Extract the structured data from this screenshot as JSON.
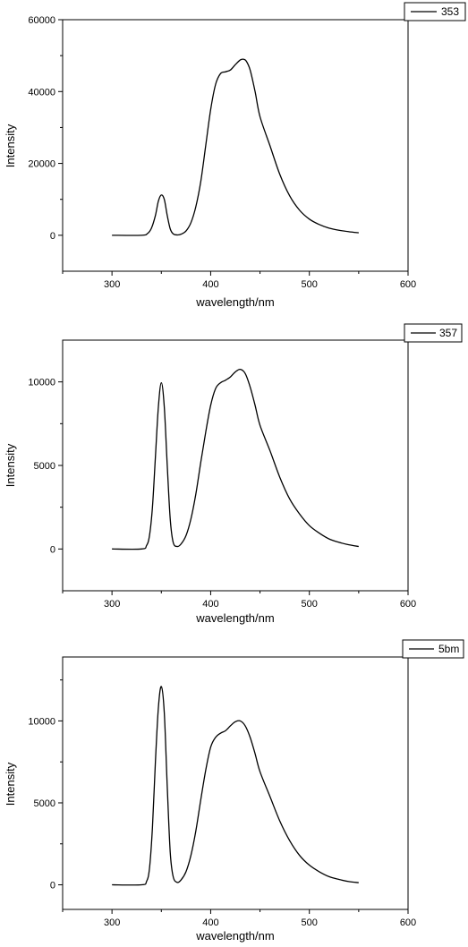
{
  "chart_data": [
    {
      "type": "line",
      "xlabel": "wavelength/nm",
      "ylabel": "Intensity",
      "xlim": [
        250,
        600
      ],
      "ylim": [
        -10000,
        60000
      ],
      "xticks": [
        300,
        400,
        500,
        600
      ],
      "xtick_labels": [
        "300",
        "400",
        "500",
        "600"
      ],
      "yticks": [
        0,
        20000,
        40000,
        60000
      ],
      "ytick_labels": [
        "0",
        "20000",
        "40000",
        "60000"
      ],
      "legend_position": "top-right",
      "series": [
        {
          "name": "353",
          "x": [
            300,
            330,
            336,
            340,
            344,
            347,
            350,
            353,
            356,
            359,
            362,
            366,
            370,
            375,
            380,
            385,
            390,
            395,
            400,
            405,
            410,
            415,
            420,
            425,
            430,
            433,
            436,
            440,
            445,
            450,
            460,
            470,
            480,
            490,
            500,
            510,
            520,
            530,
            540,
            550
          ],
          "y": [
            0,
            0,
            500,
            2000,
            5500,
            9500,
            11200,
            10000,
            5500,
            1800,
            400,
            100,
            300,
            1200,
            3500,
            8000,
            15000,
            25000,
            35000,
            42000,
            45000,
            45500,
            46000,
            47500,
            48800,
            49000,
            48500,
            46000,
            40000,
            33000,
            25000,
            17000,
            11000,
            7000,
            4500,
            3000,
            2000,
            1400,
            1000,
            700
          ]
        }
      ]
    },
    {
      "type": "line",
      "xlabel": "wavelength/nm",
      "ylabel": "Intensity",
      "xlim": [
        250,
        600
      ],
      "ylim": [
        -2500,
        12500
      ],
      "xticks": [
        300,
        400,
        500,
        600
      ],
      "xtick_labels": [
        "300",
        "400",
        "500",
        "600"
      ],
      "yticks": [
        0,
        5000,
        10000
      ],
      "ytick_labels": [
        "0",
        "5000",
        "10000"
      ],
      "legend_position": "top-right",
      "series": [
        {
          "name": "357",
          "x": [
            300,
            330,
            335,
            338,
            341,
            344,
            347,
            350,
            353,
            356,
            359,
            362,
            366,
            370,
            375,
            380,
            385,
            390,
            395,
            400,
            405,
            410,
            415,
            420,
            425,
            430,
            435,
            440,
            445,
            450,
            460,
            470,
            480,
            490,
            500,
            510,
            520,
            530,
            540,
            550
          ],
          "y": [
            0,
            0,
            200,
            800,
            2500,
            5500,
            8500,
            9950,
            8500,
            5000,
            1800,
            400,
            150,
            300,
            800,
            1800,
            3300,
            5200,
            7000,
            8600,
            9600,
            9950,
            10100,
            10300,
            10600,
            10750,
            10500,
            9700,
            8600,
            7400,
            5900,
            4300,
            3000,
            2100,
            1400,
            950,
            600,
            400,
            250,
            150
          ]
        }
      ]
    },
    {
      "type": "line",
      "xlabel": "wavelength/nm",
      "ylabel": "Intensity",
      "xlim": [
        250,
        600
      ],
      "ylim": [
        -1500,
        13900
      ],
      "xticks": [
        300,
        400,
        500,
        600
      ],
      "xtick_labels": [
        "300",
        "400",
        "500",
        "600"
      ],
      "yticks": [
        0,
        5000,
        10000
      ],
      "ytick_labels": [
        "0",
        "5000",
        "10000"
      ],
      "legend_position": "top-right",
      "series": [
        {
          "name": "5bm",
          "x": [
            300,
            330,
            335,
            338,
            341,
            344,
            347,
            350,
            353,
            356,
            359,
            362,
            366,
            370,
            375,
            380,
            385,
            390,
            395,
            400,
            405,
            410,
            415,
            420,
            425,
            430,
            435,
            440,
            445,
            450,
            460,
            470,
            480,
            490,
            500,
            510,
            520,
            530,
            540,
            550
          ],
          "y": [
            0,
            0,
            200,
            1000,
            3500,
            7500,
            10800,
            12100,
            10500,
            6000,
            2000,
            500,
            150,
            300,
            800,
            1800,
            3300,
            5200,
            7000,
            8400,
            9000,
            9250,
            9400,
            9700,
            9950,
            10000,
            9700,
            9000,
            8000,
            6900,
            5400,
            3900,
            2700,
            1800,
            1200,
            800,
            500,
            330,
            200,
            130
          ]
        }
      ]
    }
  ]
}
